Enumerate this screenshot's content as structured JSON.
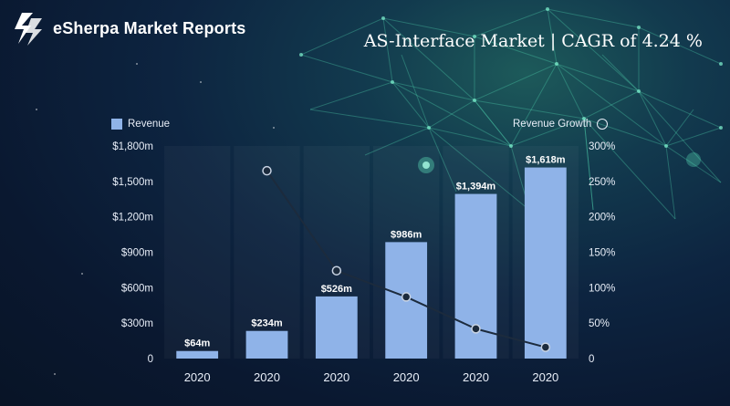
{
  "brand": {
    "name": "eSherpa Market Reports",
    "logo_icon": "esherpa-logo-icon"
  },
  "headline": "AS-Interface Market | CAGR of 4.24 %",
  "colors": {
    "bar": "#8fb3e8",
    "line": "#1c2b3d",
    "text": "#e8eef8"
  },
  "chart_data": {
    "type": "bar",
    "categories": [
      "2020",
      "2020",
      "2020",
      "2020",
      "2020",
      "2020"
    ],
    "series": [
      {
        "name": "Revenue",
        "type": "bar",
        "axis": "left",
        "values": [
          64,
          234,
          526,
          986,
          1394,
          1618
        ],
        "labels": [
          "$64m",
          "$234m",
          "$526m",
          "$986m",
          "$1,394m",
          "$1,618m"
        ]
      },
      {
        "name": "Revenue Growth",
        "type": "line",
        "axis": "right",
        "values": [
          null,
          265,
          124,
          87,
          42,
          16
        ]
      }
    ],
    "y_left": {
      "ticks": [
        0,
        300,
        600,
        900,
        1200,
        1500,
        1800
      ],
      "tick_labels": [
        "0",
        "$300m",
        "$600m",
        "$900m",
        "$1,200m",
        "$1,500m",
        "$1,800m"
      ],
      "ylim": [
        0,
        1800
      ]
    },
    "y_right": {
      "ticks": [
        0,
        50,
        100,
        150,
        200,
        250,
        300
      ],
      "tick_labels": [
        "0",
        "50%",
        "100%",
        "150%",
        "200%",
        "250%",
        "300%"
      ],
      "ylim": [
        0,
        300
      ]
    },
    "legend": [
      "Revenue",
      "Revenue Growth"
    ],
    "legend_position": "top"
  }
}
